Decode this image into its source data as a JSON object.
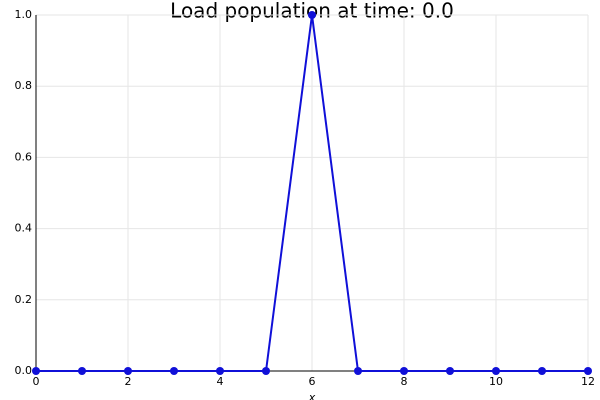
{
  "chart_data": {
    "type": "line",
    "title": "Load population at time: 0.0",
    "xlabel": "x",
    "x": [
      0,
      1,
      2,
      3,
      4,
      5,
      6,
      7,
      8,
      9,
      10,
      11,
      12
    ],
    "series": [
      {
        "color": "#1010d8",
        "values": [
          0,
          0,
          0,
          0,
          0,
          0,
          1,
          0,
          0,
          0,
          0,
          0,
          0
        ]
      }
    ],
    "xlim": [
      0,
      12
    ],
    "xticks": [
      0,
      2,
      4,
      6,
      8,
      10,
      12
    ],
    "ylim": [
      0,
      1
    ],
    "yticks": [
      {
        "value": 0,
        "label": "0.0"
      },
      0.2,
      0.4,
      0.6,
      0.8,
      {
        "value": 1,
        "label": "1.0"
      }
    ],
    "grid": true
  }
}
